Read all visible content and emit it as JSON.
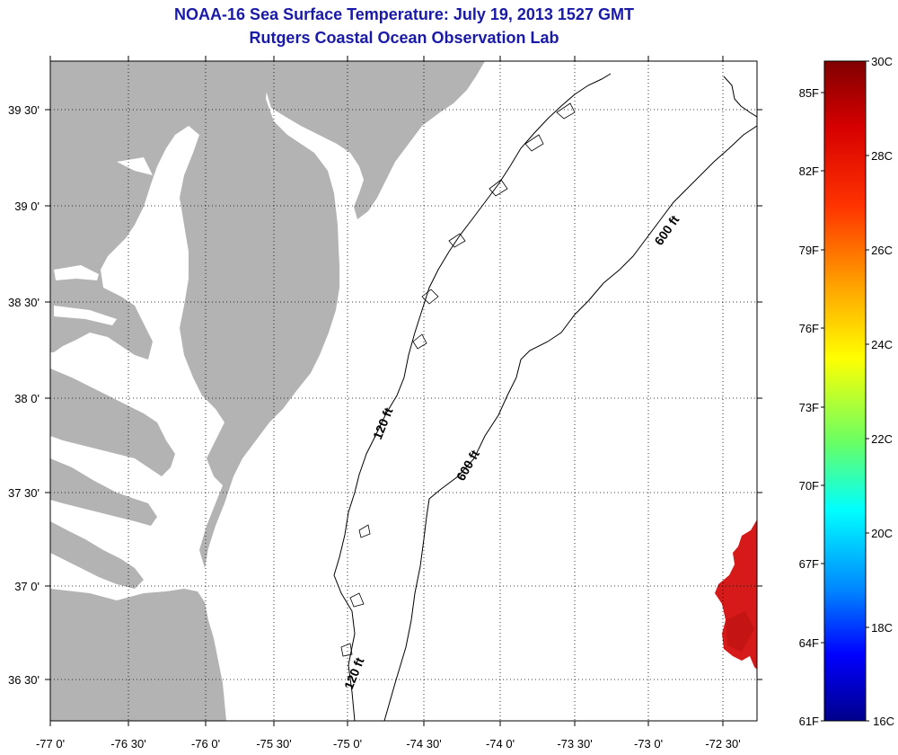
{
  "header": {
    "title": "NOAA-16 Sea Surface Temperature:  July 19, 2013 1527 GMT",
    "subtitle": "Rutgers Coastal Ocean Observation Lab"
  },
  "map": {
    "lat_labels": [
      "39 30'",
      "39 0'",
      "38 30'",
      "38 0'",
      "37 30'",
      "37 0'",
      "36 30'"
    ],
    "lon_labels": [
      "-77 0'",
      "-76 30'",
      "-76 0'",
      "-75 30'",
      "-75 0'",
      "-74 30'",
      "-74 0'",
      "-73 30'",
      "-73 0'",
      "-72 30'"
    ],
    "contour_labels": [
      {
        "id": "c120a",
        "text": "120 ft"
      },
      {
        "id": "c120b",
        "text": "120 ft"
      },
      {
        "id": "c600a",
        "text": "600 ft"
      },
      {
        "id": "c600b",
        "text": "600 ft"
      }
    ],
    "colors": {
      "land": "#b3b3b3",
      "water": "#ffffff",
      "sst_patch": "#d61a1a",
      "frame": "#000000",
      "title": "#1a1aa8"
    }
  },
  "colorbar": {
    "celsius_labels": [
      "30C",
      "28C",
      "26C",
      "24C",
      "22C",
      "20C",
      "18C",
      "16C"
    ],
    "fahrenheit_labels": [
      "85F",
      "82F",
      "79F",
      "76F",
      "73F",
      "70F",
      "67F",
      "64F",
      "61F"
    ],
    "range_c": [
      16,
      30
    ],
    "gradient": [
      "#800000",
      "#ff0000",
      "#ff8000",
      "#ffff00",
      "#80ff80",
      "#00ffff",
      "#0080ff",
      "#0000ff",
      "#00008a"
    ]
  }
}
